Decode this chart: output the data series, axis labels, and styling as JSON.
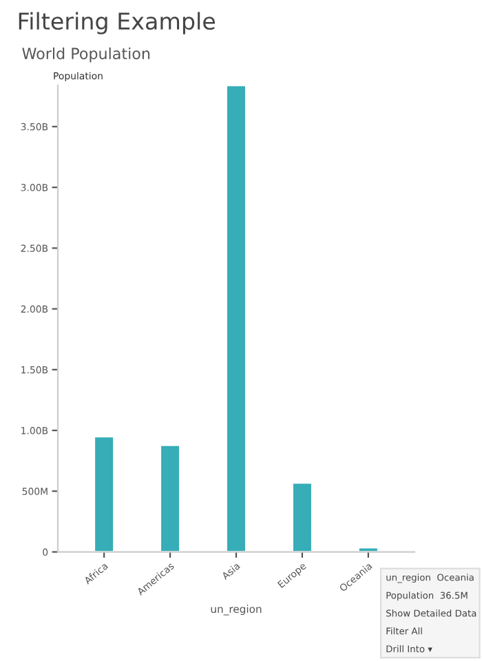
{
  "chart_data": {
    "type": "bar",
    "title": "Filtering Example",
    "subtitle": "World Population",
    "xlabel": "un_region",
    "ylabel": "Population",
    "categories": [
      "Africa",
      "Americas",
      "Asia",
      "Europe",
      "Oceania"
    ],
    "values": [
      950000000,
      880000000,
      3840000000,
      570000000,
      36500000
    ],
    "color": "#36adb7",
    "ylim": [
      0,
      3840000000
    ],
    "yticks": [
      0,
      {
        "value": 500000000,
        "label": "500M"
      },
      {
        "value": 1000000000,
        "label": "1.00B"
      },
      {
        "value": 1500000000,
        "label": "1.50B"
      },
      {
        "value": 2000000000,
        "label": "2.00B"
      },
      {
        "value": 2500000000,
        "label": "2.50B"
      },
      {
        "value": 3000000000,
        "label": "3.00B"
      },
      {
        "value": 3500000000,
        "label": "3.50B"
      }
    ],
    "grid": false,
    "annotations": [
      "un_region  Oceania",
      "Population  36.5M",
      "Show Detailed Data",
      "Filter All",
      "Drill Into ▾"
    ]
  }
}
